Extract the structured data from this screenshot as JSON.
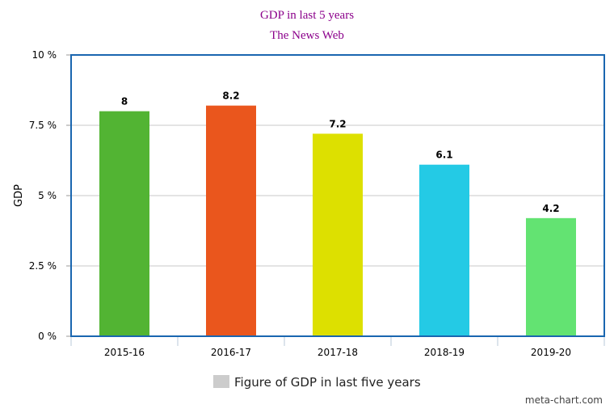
{
  "chart_data": {
    "type": "bar",
    "title": "GDP in last 5 years",
    "subtitle": "The News Web",
    "ylabel": "GDP",
    "xlabel": "",
    "ylim": [
      0,
      10
    ],
    "yticks": [
      0,
      2.5,
      5,
      7.5,
      10
    ],
    "ytick_labels": [
      "0 %",
      "2.5 %",
      "5 %",
      "7.5 %",
      "10 %"
    ],
    "categories": [
      "2015-16",
      "2016-17",
      "2017-18",
      "2018-19",
      "2019-20"
    ],
    "values": [
      8,
      8.2,
      7.2,
      6.1,
      4.2
    ],
    "data_labels": [
      "8",
      "8.2",
      "7.2",
      "6.1",
      "4.2"
    ],
    "bar_colors": [
      "#52b433",
      "#ea561d",
      "#dde000",
      "#24cae5",
      "#63e372"
    ],
    "legend": {
      "label": "Figure of GDP in last five years",
      "color": "#cccccc",
      "position": "bottom"
    },
    "grid": true,
    "frame_color": "#1a66b0",
    "credit": "meta-chart.com"
  }
}
